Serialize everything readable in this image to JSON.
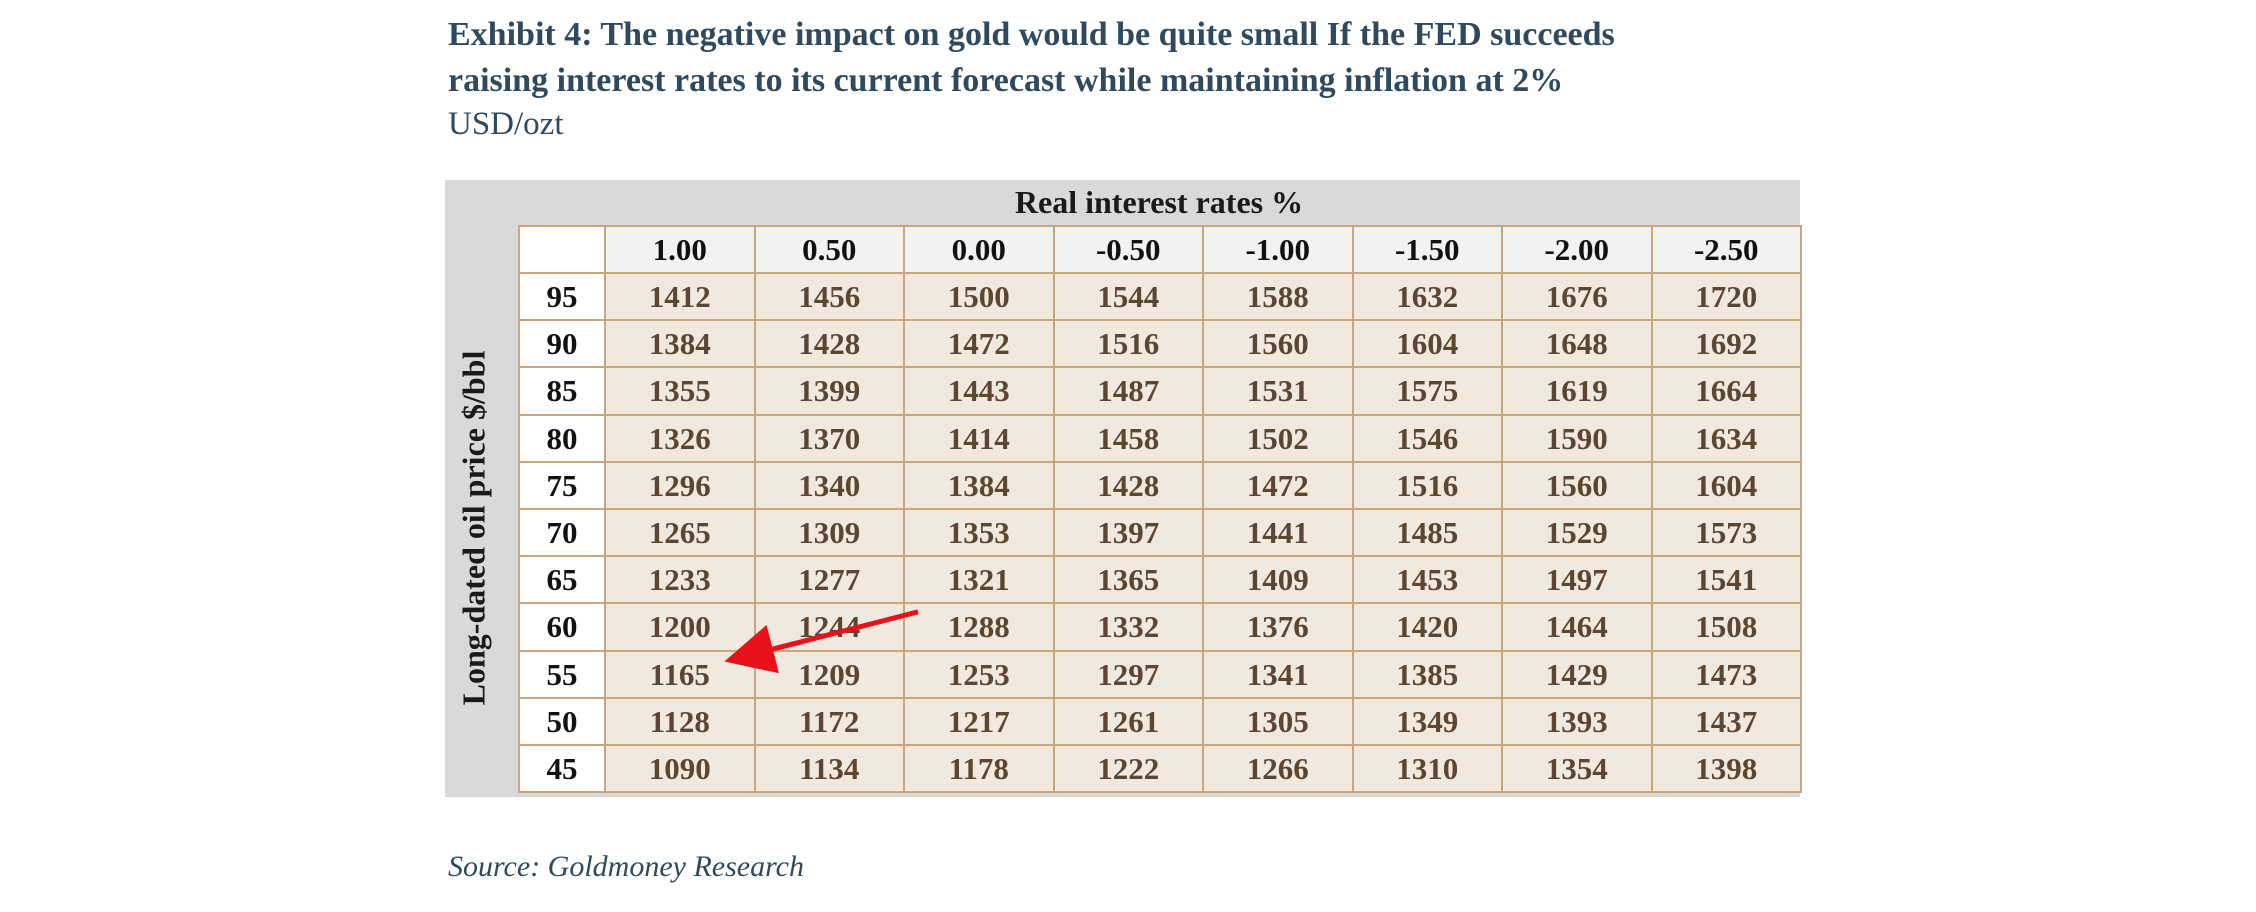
{
  "title_lines": [
    "Exhibit 4: The negative impact on gold would be quite small If the FED succeeds",
    "raising interest rates to its current forecast while maintaining inflation at 2%"
  ],
  "subtitle": "USD/ozt",
  "source": "Source: Goldmoney Research",
  "colors": {
    "title": "#2f4a5e",
    "value_text": "#5a4632",
    "cell_fill": "#f2e9de",
    "cell_border": "#c9a77c",
    "axis_band": "#d9d9d9",
    "arrow": "#e8121c"
  },
  "chart_data": {
    "type": "table",
    "col_axis_title": "Real interest rates %",
    "row_axis_title": "Long-dated oil price $/bbl",
    "columns": [
      "1.00",
      "0.50",
      "0.00",
      "-0.50",
      "-1.00",
      "-1.50",
      "-2.00",
      "-2.50"
    ],
    "rows": [
      "95",
      "90",
      "85",
      "80",
      "75",
      "70",
      "65",
      "60",
      "55",
      "50",
      "45"
    ],
    "values": [
      [
        1412,
        1456,
        1500,
        1544,
        1588,
        1632,
        1676,
        1720
      ],
      [
        1384,
        1428,
        1472,
        1516,
        1560,
        1604,
        1648,
        1692
      ],
      [
        1355,
        1399,
        1443,
        1487,
        1531,
        1575,
        1619,
        1664
      ],
      [
        1326,
        1370,
        1414,
        1458,
        1502,
        1546,
        1590,
        1634
      ],
      [
        1296,
        1340,
        1384,
        1428,
        1472,
        1516,
        1560,
        1604
      ],
      [
        1265,
        1309,
        1353,
        1397,
        1441,
        1485,
        1529,
        1573
      ],
      [
        1233,
        1277,
        1321,
        1365,
        1409,
        1453,
        1497,
        1541
      ],
      [
        1200,
        1244,
        1288,
        1332,
        1376,
        1420,
        1464,
        1508
      ],
      [
        1165,
        1209,
        1253,
        1297,
        1341,
        1385,
        1429,
        1473
      ],
      [
        1128,
        1172,
        1217,
        1261,
        1305,
        1349,
        1393,
        1437
      ],
      [
        1090,
        1134,
        1178,
        1222,
        1266,
        1310,
        1354,
        1398
      ]
    ],
    "annotation": {
      "type": "arrow",
      "from": {
        "row": "60",
        "col": "0.00"
      },
      "to": {
        "row": "55",
        "col": "1.00"
      }
    }
  }
}
